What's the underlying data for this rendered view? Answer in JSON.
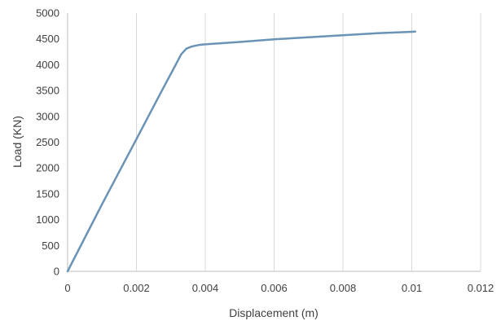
{
  "chart_data": {
    "type": "line",
    "title": "",
    "xlabel": "Displacement (m)",
    "ylabel": "Load (KN)",
    "xlim": [
      0,
      0.012
    ],
    "ylim": [
      0,
      5000
    ],
    "x_ticks": [
      "0",
      "0.002",
      "0.004",
      "0.006",
      "0.008",
      "0.01",
      "0.012"
    ],
    "y_ticks": [
      "0",
      "500",
      "1000",
      "1500",
      "2000",
      "2500",
      "3000",
      "3500",
      "4000",
      "4500",
      "5000"
    ],
    "grid": "vertical",
    "legend": "none",
    "series": [
      {
        "color": "#6a93b6",
        "x": [
          0,
          0.001,
          0.002,
          0.0027,
          0.0031,
          0.0033,
          0.00345,
          0.0036,
          0.0038,
          0.004,
          0.005,
          0.006,
          0.007,
          0.008,
          0.009,
          0.0101
        ],
        "y": [
          0,
          1300,
          2560,
          3450,
          3950,
          4200,
          4310,
          4350,
          4380,
          4395,
          4440,
          4490,
          4530,
          4570,
          4610,
          4640
        ]
      }
    ]
  }
}
